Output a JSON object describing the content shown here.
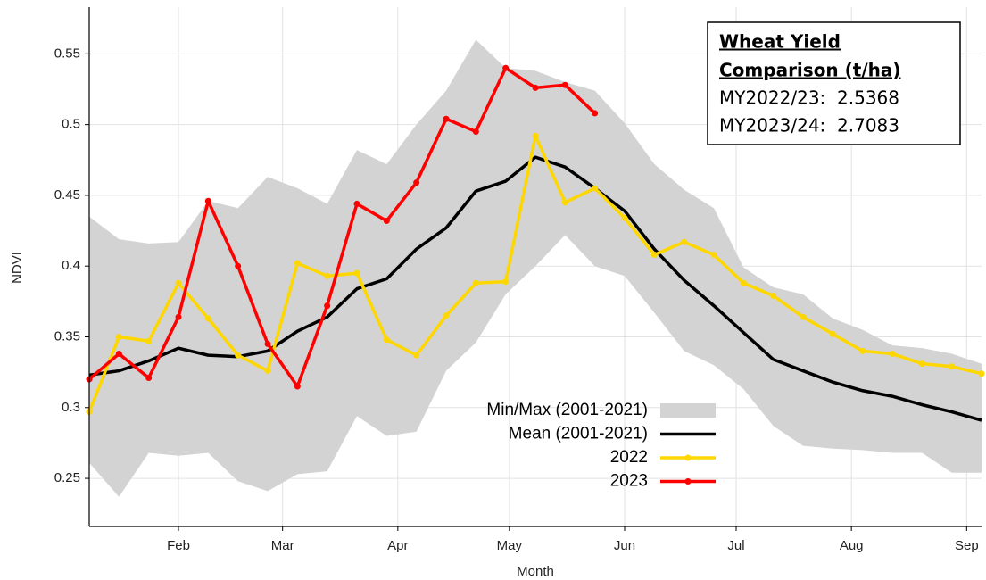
{
  "chart_data": {
    "type": "line",
    "x_label": "Month",
    "y_label": "NDVI",
    "x": [
      8,
      16,
      24,
      32,
      40,
      48,
      56,
      64,
      72,
      80,
      88,
      96,
      104,
      112,
      120,
      128,
      136,
      144,
      152,
      160,
      168,
      176,
      184,
      192,
      200,
      208,
      216,
      224,
      232,
      240,
      248
    ],
    "xlim": [
      8,
      248
    ],
    "xticks": [
      {
        "value": 32,
        "label": "Feb"
      },
      {
        "value": 60,
        "label": "Mar"
      },
      {
        "value": 91,
        "label": "Apr"
      },
      {
        "value": 121,
        "label": "May"
      },
      {
        "value": 152,
        "label": "Jun"
      },
      {
        "value": 182,
        "label": "Jul"
      },
      {
        "value": 213,
        "label": "Aug"
      },
      {
        "value": 244,
        "label": "Sep"
      }
    ],
    "ylim": [
      0.216,
      0.583
    ],
    "yticks": [
      0.25,
      0.3,
      0.35,
      0.4,
      0.45,
      0.5,
      0.55
    ],
    "grid": true,
    "series": [
      {
        "name": "Min/Max (2001-2021)",
        "type": "band",
        "color": "#d3d3d3",
        "upper": [
          0.435,
          0.419,
          0.416,
          0.417,
          0.446,
          0.441,
          0.463,
          0.455,
          0.444,
          0.482,
          0.472,
          0.5,
          0.524,
          0.56,
          0.54,
          0.538,
          0.53,
          0.524,
          0.501,
          0.472,
          0.454,
          0.441,
          0.399,
          0.385,
          0.38,
          0.363,
          0.355,
          0.344,
          0.342,
          0.338,
          0.331
        ],
        "lower": [
          0.261,
          0.237,
          0.268,
          0.266,
          0.268,
          0.248,
          0.241,
          0.253,
          0.255,
          0.294,
          0.28,
          0.283,
          0.326,
          0.346,
          0.38,
          0.4,
          0.422,
          0.4,
          0.393,
          0.367,
          0.34,
          0.33,
          0.313,
          0.287,
          0.273,
          0.271,
          0.27,
          0.268,
          0.268,
          0.254,
          0.254
        ]
      },
      {
        "name": "Mean (2001-2021)",
        "type": "line",
        "color": "#000000",
        "markers": false,
        "values": [
          0.323,
          0.326,
          0.333,
          0.342,
          0.337,
          0.336,
          0.34,
          0.354,
          0.364,
          0.384,
          0.391,
          0.412,
          0.427,
          0.453,
          0.46,
          0.477,
          0.47,
          0.455,
          0.439,
          0.412,
          0.39,
          0.372,
          0.353,
          0.334,
          0.326,
          0.318,
          0.312,
          0.308,
          0.302,
          0.297,
          0.291
        ]
      },
      {
        "name": "2022",
        "type": "line",
        "color": "#ffd700",
        "markers": true,
        "values": [
          0.297,
          0.35,
          0.347,
          0.388,
          0.363,
          0.337,
          0.326,
          0.402,
          0.393,
          0.395,
          0.348,
          0.337,
          0.365,
          0.388,
          0.389,
          0.492,
          0.445,
          0.455,
          0.434,
          0.408,
          0.417,
          0.408,
          0.388,
          0.379,
          0.364,
          0.352,
          0.34,
          0.338,
          0.331,
          0.329,
          0.324
        ]
      },
      {
        "name": "2023",
        "type": "line",
        "color": "#ff0000",
        "markers": true,
        "values": [
          0.32,
          0.338,
          0.321,
          0.364,
          0.446,
          0.4,
          0.345,
          0.315,
          0.372,
          0.444,
          0.432,
          0.459,
          0.504,
          0.495,
          0.54,
          0.526,
          0.528,
          0.508,
          null,
          null,
          null,
          null,
          null,
          null,
          null,
          null,
          null,
          null,
          null,
          null,
          null
        ]
      }
    ],
    "annotation": {
      "heading": [
        "Wheat Yield",
        "Comparison (t/ha)"
      ],
      "lines": [
        "MY2022/23:  2.5368",
        "MY2023/24:  2.7083"
      ]
    }
  }
}
